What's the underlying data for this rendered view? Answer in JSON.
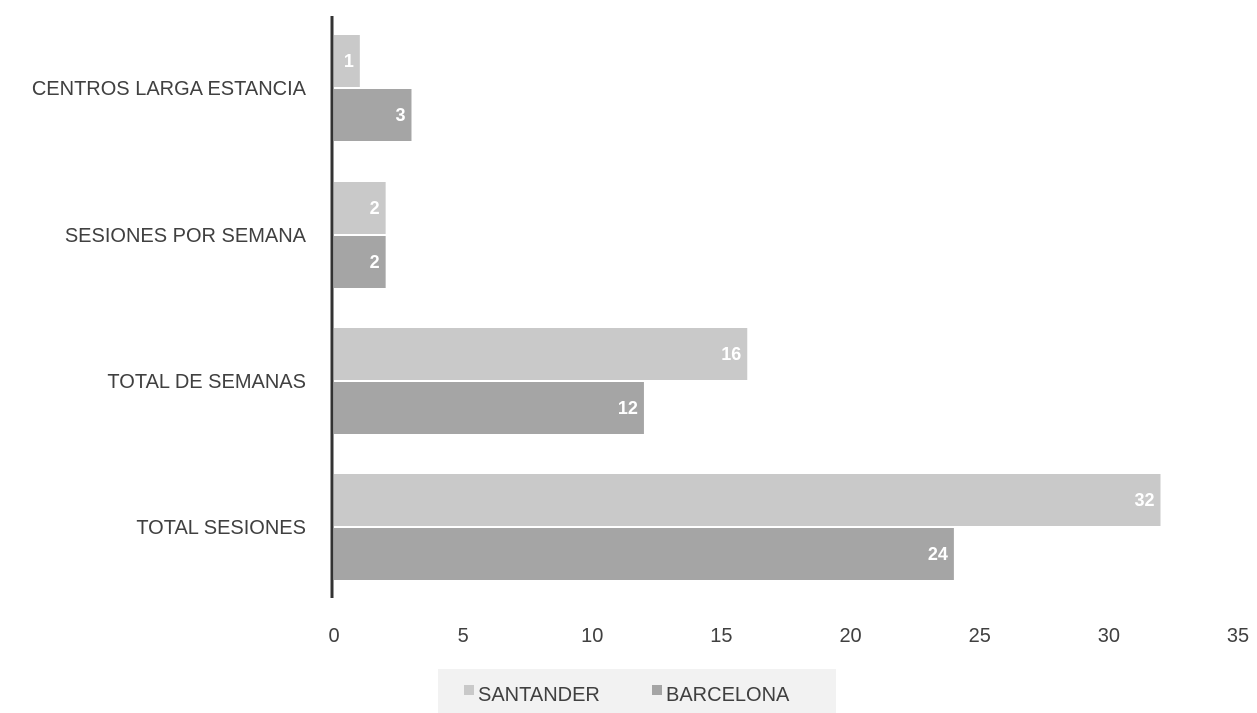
{
  "chart_data": {
    "type": "bar",
    "orientation": "horizontal",
    "categories": [
      "CENTROS LARGA ESTANCIA",
      "SESIONES POR SEMANA",
      "TOTAL DE SEMANAS",
      "TOTAL SESIONES"
    ],
    "series": [
      {
        "name": "SANTANDER",
        "values": [
          1,
          2,
          16,
          32
        ],
        "color": "#c9c9c9"
      },
      {
        "name": "BARCELONA",
        "values": [
          3,
          2,
          12,
          24
        ],
        "color": "#a5a5a5"
      }
    ],
    "xlim": [
      0,
      35
    ],
    "xticks": [
      "0",
      "5",
      "10",
      "15",
      "20",
      "25",
      "30",
      "35"
    ],
    "grid": false,
    "legend_position": "bottom",
    "data_labels": true
  }
}
